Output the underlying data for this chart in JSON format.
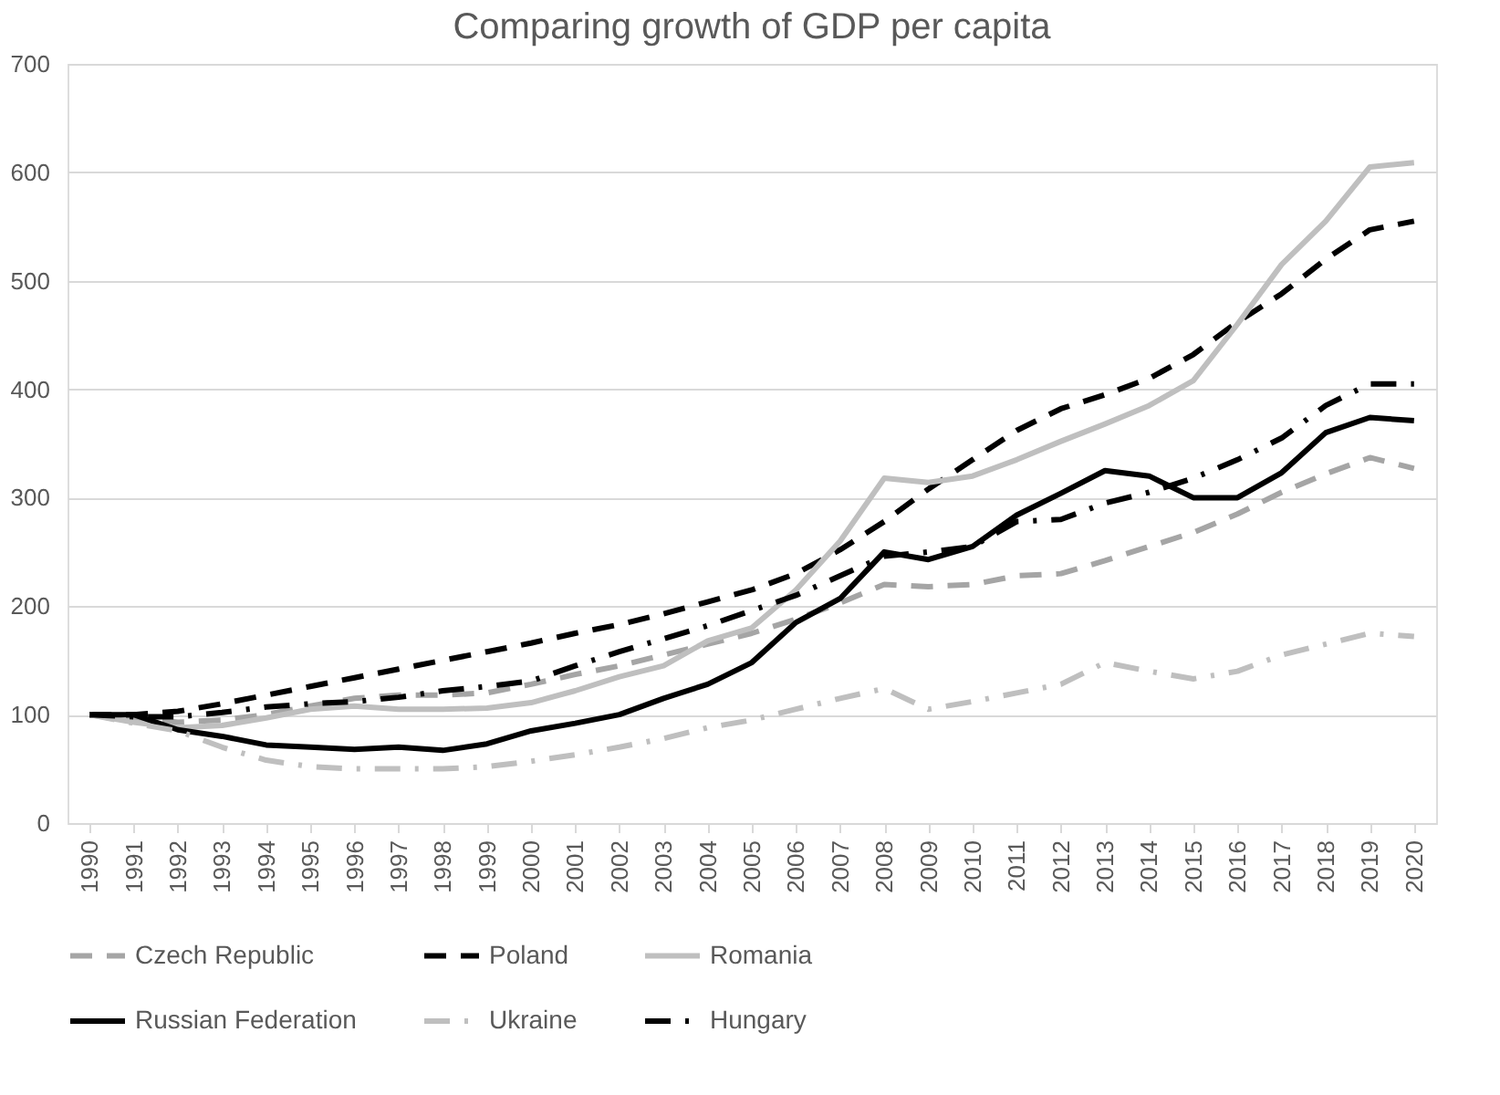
{
  "chart_data": {
    "type": "line",
    "title": "Comparing growth of GDP per capita",
    "categories": [
      "1990",
      "1991",
      "1992",
      "1993",
      "1994",
      "1995",
      "1996",
      "1997",
      "1998",
      "1999",
      "2000",
      "2001",
      "2002",
      "2003",
      "2004",
      "2005",
      "2006",
      "2007",
      "2008",
      "2009",
      "2010",
      "2011",
      "2012",
      "2013",
      "2014",
      "2015",
      "2016",
      "2017",
      "2018",
      "2019",
      "2020"
    ],
    "ylim": [
      0,
      700
    ],
    "yticks": [
      0,
      100,
      200,
      300,
      400,
      500,
      600,
      700
    ],
    "grid": "y",
    "legend": "bottom",
    "marker": "none",
    "series": [
      {
        "name": "Czech Republic",
        "color": "#a5a5a5",
        "line_style": "dashed",
        "values": [
          100,
          97,
          93,
          95,
          100,
          108,
          115,
          118,
          118,
          120,
          128,
          137,
          145,
          155,
          165,
          175,
          188,
          203,
          220,
          218,
          220,
          228,
          230,
          242,
          255,
          268,
          285,
          305,
          322,
          337,
          327
        ]
      },
      {
        "name": "Poland",
        "color": "#000000",
        "line_style": "dashed",
        "values": [
          100,
          100,
          103,
          110,
          118,
          126,
          134,
          142,
          150,
          158,
          166,
          175,
          183,
          193,
          204,
          215,
          230,
          252,
          278,
          308,
          335,
          362,
          382,
          395,
          410,
          432,
          462,
          488,
          520,
          547,
          555
        ]
      },
      {
        "name": "Romania",
        "color": "#bfbfbf",
        "line_style": "solid",
        "values": [
          100,
          93,
          88,
          90,
          97,
          105,
          108,
          105,
          105,
          106,
          111,
          122,
          135,
          145,
          168,
          180,
          215,
          260,
          318,
          314,
          320,
          335,
          352,
          368,
          385,
          408,
          460,
          515,
          555,
          605,
          609
        ]
      },
      {
        "name": "Russian Federation",
        "color": "#000000",
        "line_style": "solid",
        "values": [
          100,
          100,
          86,
          80,
          72,
          70,
          68,
          70,
          67,
          73,
          85,
          92,
          100,
          115,
          128,
          148,
          185,
          207,
          250,
          243,
          255,
          284,
          304,
          325,
          320,
          300,
          300,
          323,
          360,
          374,
          371
        ]
      },
      {
        "name": "Ukraine",
        "color": "#bfbfbf",
        "line_style": "dashdot",
        "values": [
          100,
          92,
          85,
          70,
          58,
          52,
          50,
          50,
          50,
          52,
          57,
          63,
          70,
          78,
          88,
          95,
          105,
          115,
          124,
          105,
          112,
          120,
          128,
          148,
          140,
          133,
          140,
          155,
          165,
          175,
          172
        ]
      },
      {
        "name": "Hungary",
        "color": "#000000",
        "line_style": "dashdot",
        "values": [
          100,
          98,
          98,
          102,
          107,
          110,
          112,
          116,
          122,
          126,
          131,
          145,
          158,
          170,
          182,
          196,
          210,
          228,
          246,
          250,
          255,
          278,
          280,
          295,
          305,
          318,
          335,
          355,
          385,
          405,
          405
        ]
      }
    ]
  }
}
